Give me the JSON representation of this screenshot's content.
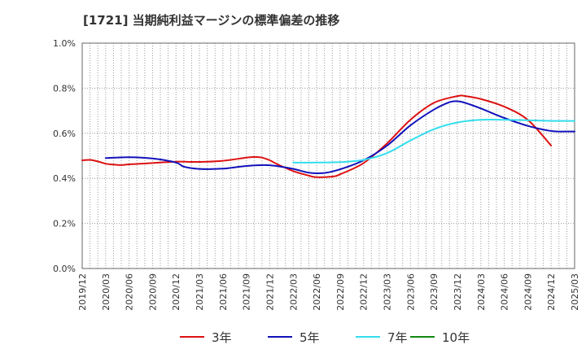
{
  "title": "[1721]  当期純利益マージンの標準偏差の推移",
  "chart_data": {
    "type": "line",
    "title": "[1721]  当期純利益マージンの標準偏差の推移",
    "xlabel": "",
    "ylabel": "",
    "x": [
      "2019/12",
      "2020/03",
      "2020/06",
      "2020/09",
      "2020/12",
      "2021/03",
      "2021/06",
      "2021/09",
      "2021/12",
      "2022/03",
      "2022/06",
      "2022/09",
      "2022/12",
      "2023/03",
      "2023/06",
      "2023/09",
      "2023/12",
      "2024/03",
      "2024/06",
      "2024/09",
      "2024/12",
      "2025/03"
    ],
    "ylim": [
      0,
      1.0
    ],
    "yticks": [
      "0.0%",
      "0.2%",
      "0.4%",
      "0.6%",
      "0.8%",
      "1.0%"
    ],
    "ytick_values": [
      0,
      0.2,
      0.4,
      0.6,
      0.8,
      1.0
    ],
    "grid": true,
    "legend_position": "bottom",
    "series": [
      {
        "name": "3年",
        "color": "#dd1111",
        "points": [
          [
            "2019/12",
            0.48
          ],
          [
            "2020/01",
            0.482
          ],
          [
            "2020/02",
            0.475
          ],
          [
            "2020/03",
            0.465
          ],
          [
            "2020/04",
            0.461
          ],
          [
            "2020/05",
            0.459
          ],
          [
            "2020/06",
            0.462
          ],
          [
            "2020/09",
            0.468
          ],
          [
            "2020/12",
            0.474
          ],
          [
            "2021/03",
            0.473
          ],
          [
            "2021/06",
            0.478
          ],
          [
            "2021/09",
            0.492
          ],
          [
            "2021/10",
            0.495
          ],
          [
            "2021/11",
            0.492
          ],
          [
            "2021/12",
            0.48
          ],
          [
            "2022/01",
            0.462
          ],
          [
            "2022/03",
            0.432
          ],
          [
            "2022/05",
            0.412
          ],
          [
            "2022/06",
            0.405
          ],
          [
            "2022/08",
            0.408
          ],
          [
            "2022/09",
            0.418
          ],
          [
            "2022/12",
            0.468
          ],
          [
            "2023/03",
            0.555
          ],
          [
            "2023/06",
            0.66
          ],
          [
            "2023/09",
            0.735
          ],
          [
            "2023/12",
            0.765
          ],
          [
            "2024/01",
            0.765
          ],
          [
            "2024/03",
            0.752
          ],
          [
            "2024/06",
            0.718
          ],
          [
            "2024/09",
            0.66
          ],
          [
            "2024/12",
            0.545
          ]
        ]
      },
      {
        "name": "5年",
        "color": "#1111bb",
        "points": [
          [
            "2020/03",
            0.49
          ],
          [
            "2020/06",
            0.494
          ],
          [
            "2020/09",
            0.488
          ],
          [
            "2020/12",
            0.47
          ],
          [
            "2021/01",
            0.452
          ],
          [
            "2021/03",
            0.442
          ],
          [
            "2021/06",
            0.443
          ],
          [
            "2021/09",
            0.455
          ],
          [
            "2021/12",
            0.458
          ],
          [
            "2022/03",
            0.442
          ],
          [
            "2022/05",
            0.425
          ],
          [
            "2022/07",
            0.424
          ],
          [
            "2022/09",
            0.44
          ],
          [
            "2022/12",
            0.48
          ],
          [
            "2023/03",
            0.545
          ],
          [
            "2023/06",
            0.635
          ],
          [
            "2023/09",
            0.705
          ],
          [
            "2023/11",
            0.738
          ],
          [
            "2023/12",
            0.742
          ],
          [
            "2024/01",
            0.735
          ],
          [
            "2024/03",
            0.71
          ],
          [
            "2024/06",
            0.668
          ],
          [
            "2024/09",
            0.633
          ],
          [
            "2024/12",
            0.61
          ],
          [
            "2025/02",
            0.608
          ],
          [
            "2025/03",
            0.608
          ]
        ]
      },
      {
        "name": "7年",
        "color": "#33ddee",
        "points": [
          [
            "2022/03",
            0.47
          ],
          [
            "2022/06",
            0.47
          ],
          [
            "2022/09",
            0.472
          ],
          [
            "2022/12",
            0.482
          ],
          [
            "2023/03",
            0.512
          ],
          [
            "2023/06",
            0.568
          ],
          [
            "2023/09",
            0.618
          ],
          [
            "2023/12",
            0.648
          ],
          [
            "2024/03",
            0.66
          ],
          [
            "2024/06",
            0.66
          ],
          [
            "2024/09",
            0.658
          ],
          [
            "2024/12",
            0.655
          ],
          [
            "2025/03",
            0.655
          ]
        ]
      },
      {
        "name": "10年",
        "color": "#118811",
        "points": []
      }
    ]
  }
}
